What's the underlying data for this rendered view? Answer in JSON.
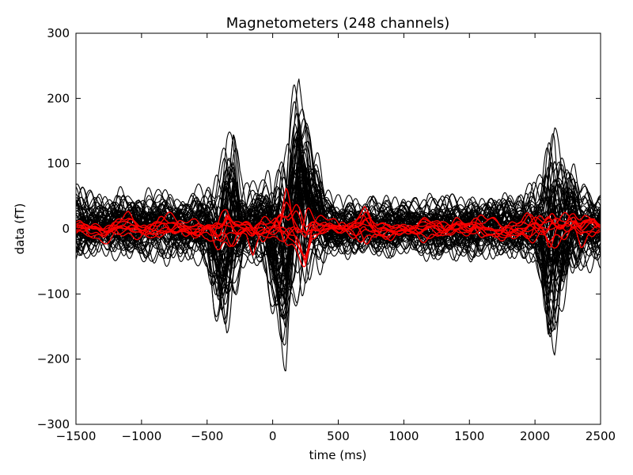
{
  "chart_data": {
    "type": "line",
    "title": "Magnetometers (248 channels)",
    "xlabel": "time (ms)",
    "ylabel": "data (fT)",
    "xlim": [
      -1500,
      2500
    ],
    "ylim": [
      -300,
      300
    ],
    "xticks": [
      -1500,
      -1000,
      -500,
      0,
      500,
      1000,
      1500,
      2000,
      2500
    ],
    "xtick_labels": [
      "−1500",
      "−1000",
      "−500",
      "0",
      "500",
      "1000",
      "1500",
      "2000",
      "2500"
    ],
    "yticks": [
      -300,
      -200,
      -100,
      0,
      100,
      200,
      300
    ],
    "ytick_labels": [
      "−300",
      "−200",
      "−100",
      "0",
      "100",
      "200",
      "300"
    ],
    "grid": false,
    "legend": "none",
    "series": [
      {
        "color": "#000000",
        "channel_count": 248,
        "time_ms": [
          -1500,
          -1400,
          -1300,
          -1200,
          -1100,
          -1000,
          -900,
          -800,
          -700,
          -600,
          -500,
          -450,
          -400,
          -350,
          -300,
          -250,
          -200,
          -150,
          -100,
          -50,
          0,
          50,
          100,
          150,
          200,
          250,
          300,
          350,
          400,
          450,
          500,
          600,
          700,
          800,
          900,
          1000,
          1100,
          1200,
          1300,
          1400,
          1500,
          1600,
          1700,
          1800,
          1900,
          2000,
          2050,
          2100,
          2150,
          2200,
          2250,
          2300,
          2350,
          2400,
          2450,
          2500
        ],
        "upper_envelope": [
          75,
          60,
          58,
          60,
          62,
          60,
          70,
          60,
          65,
          62,
          75,
          90,
          120,
          160,
          165,
          80,
          70,
          75,
          80,
          90,
          95,
          120,
          140,
          200,
          280,
          240,
          160,
          120,
          60,
          55,
          50,
          55,
          55,
          50,
          55,
          50,
          58,
          55,
          55,
          58,
          60,
          55,
          58,
          55,
          60,
          75,
          100,
          165,
          195,
          175,
          145,
          120,
          80,
          75,
          70,
          70
        ],
        "lower_envelope": [
          -55,
          -55,
          -45,
          -50,
          -52,
          -55,
          -55,
          -50,
          -55,
          -55,
          -70,
          -130,
          -170,
          -180,
          -140,
          -90,
          -75,
          -70,
          -60,
          -80,
          -140,
          -200,
          -240,
          -150,
          -120,
          -110,
          -80,
          -65,
          -55,
          -50,
          -50,
          -45,
          -50,
          -50,
          -50,
          -45,
          -50,
          -50,
          -55,
          -50,
          -55,
          -55,
          -50,
          -55,
          -60,
          -70,
          -110,
          -195,
          -210,
          -160,
          -110,
          -80,
          -65,
          -60,
          -60,
          -55
        ]
      },
      {
        "color": "#ff0000",
        "channel_count": 10,
        "time_ms": [
          -1500,
          -1400,
          -1300,
          -1200,
          -1100,
          -1000,
          -900,
          -800,
          -700,
          -600,
          -500,
          -450,
          -400,
          -350,
          -300,
          -250,
          -200,
          -150,
          -100,
          -50,
          0,
          50,
          100,
          150,
          200,
          250,
          300,
          350,
          400,
          450,
          500,
          600,
          700,
          800,
          900,
          1000,
          1100,
          1200,
          1300,
          1400,
          1500,
          1600,
          1700,
          1800,
          1900,
          2000,
          2050,
          2100,
          2150,
          2200,
          2250,
          2300,
          2350,
          2400,
          2450,
          2500
        ],
        "upper_envelope": [
          15,
          20,
          15,
          20,
          25,
          15,
          20,
          25,
          20,
          15,
          20,
          30,
          45,
          50,
          25,
          20,
          20,
          30,
          25,
          30,
          35,
          60,
          80,
          40,
          35,
          35,
          25,
          20,
          20,
          20,
          20,
          20,
          45,
          20,
          15,
          15,
          20,
          20,
          15,
          25,
          20,
          25,
          20,
          20,
          20,
          35,
          40,
          45,
          35,
          30,
          30,
          35,
          25,
          25,
          35,
          15
        ],
        "lower_envelope": [
          -15,
          -20,
          -25,
          -20,
          -15,
          -20,
          -25,
          -20,
          -15,
          -25,
          -20,
          -35,
          -40,
          -30,
          -25,
          -20,
          -15,
          -40,
          -30,
          -25,
          -30,
          -55,
          -60,
          -50,
          -65,
          -90,
          -30,
          -20,
          -15,
          -15,
          -20,
          -20,
          -25,
          -20,
          -20,
          -15,
          -20,
          -20,
          -25,
          -15,
          -20,
          -20,
          -20,
          -25,
          -20,
          -30,
          -40,
          -55,
          -40,
          -30,
          -25,
          -20,
          -30,
          -15,
          -15,
          -10
        ]
      }
    ]
  }
}
